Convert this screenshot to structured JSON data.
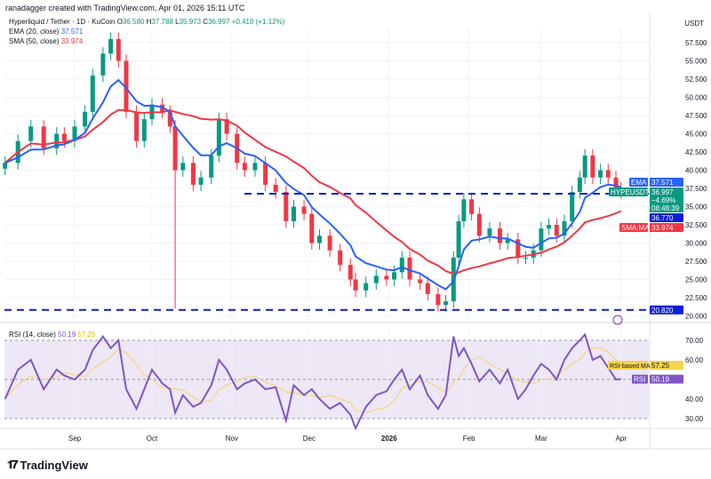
{
  "header": {
    "credit": "ranadagger created with TradingView.com, Apr 01, 2026 15:11 UTC",
    "symbol": "Hyperliquid / Tether · 1D · KuCoin",
    "ohlc": {
      "o_label": "O",
      "o": "36.580",
      "h_label": "H",
      "h": "37.788",
      "l_label": "L",
      "l": "35.973",
      "c_label": "C",
      "c": "36.997",
      "change": "+0.410 (+1.12%)"
    },
    "ema_label": "EMA (20, close)",
    "ema_value": "37.571",
    "sma_label": "SMA (50, close)",
    "sma_value": "33.974",
    "currency": "USDT"
  },
  "rsi_legend": {
    "label": "RSI (14, close)",
    "rsi": "50.19",
    "ma": "57.25"
  },
  "tags": {
    "ema": {
      "name": "EMA",
      "value": "37.571"
    },
    "price": {
      "name": "HYPEUSDT",
      "value": "36.997",
      "change": "−4.69%",
      "countdown": "08:48:39"
    },
    "level_upper": "36.770",
    "sma": {
      "name": "SMA:MA",
      "value": "33.974"
    },
    "level_lower": "20.820",
    "rsi_ma": {
      "name": "RSI-based MA",
      "value": "57.25"
    },
    "rsi": {
      "name": "RSI",
      "value": "50.19"
    }
  },
  "colors": {
    "up": "#089981",
    "down": "#f23645",
    "ema": "#2962ff",
    "sma": "#f23645",
    "level": "#0a1fd6",
    "rsi": "#7e57c2",
    "rsi_ma": "#f7d57a",
    "rsi_band": "#ede7f6"
  },
  "logo": "TradingView",
  "chart_data": [
    {
      "type": "candlestick",
      "y_ticks": [
        "57.500",
        "55.000",
        "52.500",
        "50.000",
        "47.500",
        "45.000",
        "42.500",
        "40.000",
        "37.500",
        "35.000",
        "32.500",
        "30.000",
        "27.500",
        "25.000",
        "22.500",
        "20.000"
      ],
      "ylim": [
        20,
        58.5
      ],
      "x_ticks": [
        {
          "label": "Sep",
          "date": "2025-09-01"
        },
        {
          "label": "Oct",
          "date": "2025-10-01"
        },
        {
          "label": "Nov",
          "date": "2025-11-01"
        },
        {
          "label": "Dec",
          "date": "2025-12-01"
        },
        {
          "label": "2026",
          "date": "2026-01-01"
        },
        {
          "label": "Feb",
          "date": "2026-02-01"
        },
        {
          "label": "Mar",
          "date": "2026-03-01"
        },
        {
          "label": "Apr",
          "date": "2026-04-01"
        }
      ],
      "horizontal_levels": [
        36.77,
        20.82
      ],
      "series": [
        {
          "d": "2025-08-05",
          "c": 41,
          "r": 40
        },
        {
          "d": "2025-08-10",
          "c": 44,
          "r": 55
        },
        {
          "d": "2025-08-15",
          "c": 46,
          "r": 60
        },
        {
          "d": "2025-08-20",
          "c": 43,
          "r": 45
        },
        {
          "d": "2025-08-25",
          "c": 45,
          "r": 55
        },
        {
          "d": "2025-08-28",
          "c": 44,
          "r": 52
        },
        {
          "d": "2025-09-01",
          "c": 46,
          "r": 50
        },
        {
          "d": "2025-09-05",
          "c": 48,
          "r": 55
        },
        {
          "d": "2025-09-08",
          "c": 53,
          "r": 65
        },
        {
          "d": "2025-09-12",
          "c": 56,
          "r": 72
        },
        {
          "d": "2025-09-15",
          "c": 58,
          "r": 66
        },
        {
          "d": "2025-09-18",
          "c": 55,
          "r": 70
        },
        {
          "d": "2025-09-21",
          "c": 48,
          "r": 45
        },
        {
          "d": "2025-09-25",
          "c": 44,
          "r": 35
        },
        {
          "d": "2025-09-28",
          "c": 47,
          "r": 45
        },
        {
          "d": "2025-10-01",
          "c": 49,
          "r": 55
        },
        {
          "d": "2025-10-05",
          "c": 48,
          "r": 48
        },
        {
          "d": "2025-10-08",
          "c": 46,
          "r": 45
        },
        {
          "d": "2025-10-10",
          "c": 40,
          "r": 33,
          "l": 21
        },
        {
          "d": "2025-10-13",
          "c": 41,
          "r": 42
        },
        {
          "d": "2025-10-17",
          "c": 38,
          "r": 36
        },
        {
          "d": "2025-10-20",
          "c": 39,
          "r": 38
        },
        {
          "d": "2025-10-24",
          "c": 42,
          "r": 47
        },
        {
          "d": "2025-10-27",
          "c": 47,
          "r": 60
        },
        {
          "d": "2025-10-30",
          "c": 45,
          "r": 55
        },
        {
          "d": "2025-11-03",
          "c": 41,
          "r": 45
        },
        {
          "d": "2025-11-06",
          "c": 40,
          "r": 48
        },
        {
          "d": "2025-11-10",
          "c": 41,
          "r": 50
        },
        {
          "d": "2025-11-14",
          "c": 38,
          "r": 45
        },
        {
          "d": "2025-11-18",
          "c": 37,
          "r": 46
        },
        {
          "d": "2025-11-22",
          "c": 33,
          "r": 29
        },
        {
          "d": "2025-11-25",
          "c": 35,
          "r": 47
        },
        {
          "d": "2025-11-29",
          "c": 34,
          "r": 42
        },
        {
          "d": "2025-12-02",
          "c": 30,
          "r": 45
        },
        {
          "d": "2025-12-05",
          "c": 31,
          "r": 40
        },
        {
          "d": "2025-12-09",
          "c": 29,
          "r": 35
        },
        {
          "d": "2025-12-13",
          "c": 27,
          "r": 38
        },
        {
          "d": "2025-12-17",
          "c": 25,
          "r": 32
        },
        {
          "d": "2025-12-19",
          "c": 23.5,
          "r": 25
        },
        {
          "d": "2025-12-23",
          "c": 24.5,
          "r": 36
        },
        {
          "d": "2025-12-27",
          "c": 25.5,
          "r": 42
        },
        {
          "d": "2025-12-31",
          "c": 25,
          "r": 44
        },
        {
          "d": "2026-01-03",
          "c": 26,
          "r": 50
        },
        {
          "d": "2026-01-06",
          "c": 28,
          "r": 55
        },
        {
          "d": "2026-01-09",
          "c": 25,
          "r": 45
        },
        {
          "d": "2026-01-13",
          "c": 24.5,
          "r": 52
        },
        {
          "d": "2026-01-16",
          "c": 23,
          "r": 42
        },
        {
          "d": "2026-01-20",
          "c": 21.5,
          "r": 35
        },
        {
          "d": "2026-01-23",
          "c": 22,
          "r": 42
        },
        {
          "d": "2026-01-26",
          "c": 28,
          "r": 72
        },
        {
          "d": "2026-01-28",
          "c": 33,
          "r": 62
        },
        {
          "d": "2026-01-30",
          "c": 36,
          "r": 66
        },
        {
          "d": "2026-02-02",
          "c": 34,
          "r": 58
        },
        {
          "d": "2026-02-05",
          "c": 31,
          "r": 49
        },
        {
          "d": "2026-02-09",
          "c": 32,
          "r": 55
        },
        {
          "d": "2026-02-13",
          "c": 30,
          "r": 48
        },
        {
          "d": "2026-02-16",
          "c": 30.5,
          "r": 55
        },
        {
          "d": "2026-02-20",
          "c": 28,
          "r": 40
        },
        {
          "d": "2026-02-23",
          "c": 28,
          "r": 45
        },
        {
          "d": "2026-02-26",
          "c": 29,
          "r": 52
        },
        {
          "d": "2026-03-01",
          "c": 32,
          "r": 58
        },
        {
          "d": "2026-03-04",
          "c": 32.5,
          "r": 55
        },
        {
          "d": "2026-03-07",
          "c": 31,
          "r": 50
        },
        {
          "d": "2026-03-10",
          "c": 33,
          "r": 60
        },
        {
          "d": "2026-03-13",
          "c": 37,
          "r": 66
        },
        {
          "d": "2026-03-16",
          "c": 39,
          "r": 70
        },
        {
          "d": "2026-03-18",
          "c": 42,
          "r": 73
        },
        {
          "d": "2026-03-21",
          "c": 39,
          "r": 60
        },
        {
          "d": "2026-03-24",
          "c": 40,
          "r": 62
        },
        {
          "d": "2026-03-27",
          "c": 39,
          "r": 56
        },
        {
          "d": "2026-03-30",
          "c": 37.5,
          "r": 50
        },
        {
          "d": "2026-04-01",
          "c": 37,
          "r": 50.19
        }
      ],
      "rsi": {
        "ylim": [
          22,
          78
        ],
        "ticks": [
          "70.00",
          "60.00",
          "40.00",
          "30.00"
        ],
        "band": [
          30,
          70
        ]
      }
    }
  ]
}
